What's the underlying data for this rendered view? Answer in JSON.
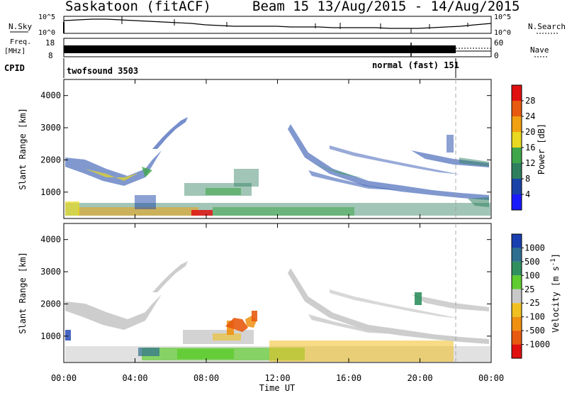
{
  "title": {
    "station": "Saskatoon (fitACF)",
    "beam_date": "Beam 15  13/Aug/2015 - 14/Aug/2015"
  },
  "nsky_panel": {
    "left_label": "N.Sky",
    "left_ticks": [
      "10^5",
      "10^0"
    ],
    "right_label": "N.Search",
    "right_ticks": [
      "10^5",
      "10^0"
    ]
  },
  "freq_panel": {
    "left_label_1": "Freq.",
    "left_label_2": "[MHz]",
    "left_ticks": [
      "18",
      "8"
    ],
    "right_label": "Nave",
    "right_ticks": [
      "60",
      "0"
    ]
  },
  "cpid_panel": {
    "label": "CPID",
    "mode_1": "twofsound 3503",
    "mode_2": "normal (fast) 151"
  },
  "colors": {
    "power_scale": [
      "#1a1aff",
      "#1a43a8",
      "#2f7f5f",
      "#3fa64a",
      "#e8d820",
      "#f0a010",
      "#e85a10",
      "#e01010"
    ],
    "velocity_scale": [
      "#1a3fb0",
      "#2f6f8f",
      "#2f8f5f",
      "#5fcc30",
      "#c8c8c8",
      "#f0c020",
      "#f09010",
      "#e85a10",
      "#e01010"
    ]
  },
  "chart_data": [
    {
      "type": "heatmap",
      "name": "Power",
      "ylabel": "Slant Range [km]",
      "yticks": [
        "1000",
        "2000",
        "3000",
        "4000"
      ],
      "ylim": [
        180,
        4500
      ],
      "xlim_hours": [
        0,
        24
      ],
      "colorbar_label": "Power [dB]",
      "colorbar_ticks": [
        "4",
        "8",
        "12",
        "16",
        "20",
        "24",
        "28"
      ],
      "colorbar_range": [
        0,
        32
      ]
    },
    {
      "type": "heatmap",
      "name": "Velocity",
      "xlabel": "Time UT",
      "xticks": [
        "00:00",
        "04:00",
        "08:00",
        "12:00",
        "16:00",
        "20:00",
        "00:00"
      ],
      "ylabel": "Slant Range [km]",
      "yticks": [
        "1000",
        "2000",
        "3000",
        "4000"
      ],
      "ylim": [
        180,
        4500
      ],
      "xlim_hours": [
        0,
        24
      ],
      "colorbar_label": "Velocity [m s",
      "colorbar_label_sup": "-1",
      "colorbar_label_end": "]",
      "colorbar_ticks": [
        "1000",
        "500",
        "100",
        "25",
        "-25",
        "-100",
        "-500",
        "-1000"
      ]
    }
  ]
}
